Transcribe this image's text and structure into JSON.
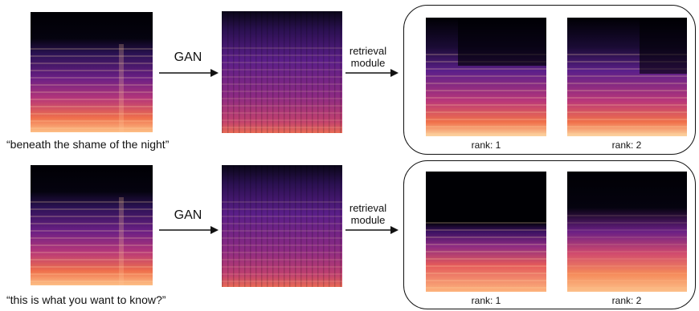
{
  "rows": [
    {
      "caption": "“beneath the shame of the night”",
      "gan_label": "GAN",
      "retrieval_label_1": "retrieval",
      "retrieval_label_2": "module",
      "rank_1": "rank: 1",
      "rank_2": "rank: 2"
    },
    {
      "caption": "“this is what you want to know?”",
      "gan_label": "GAN",
      "retrieval_label_1": "retrieval",
      "retrieval_label_2": "module",
      "rank_1": "rank: 1",
      "rank_2": "rank: 2"
    }
  ],
  "colors": {
    "spectrogram_dark": "#000004",
    "spectrogram_purple": "#5b1f8a",
    "spectrogram_magenta": "#b8367a",
    "spectrogram_orange": "#f0704a",
    "spectrogram_bright": "#fcd5a0"
  }
}
